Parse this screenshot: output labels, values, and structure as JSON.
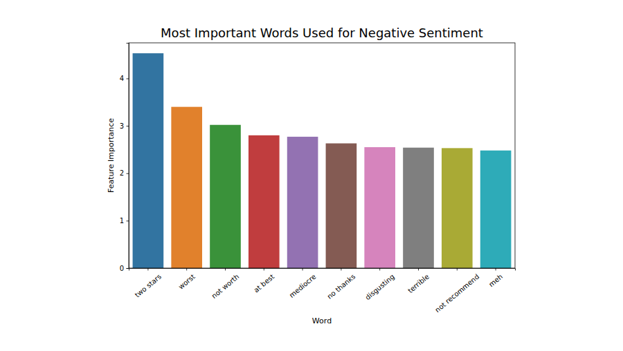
{
  "chart_data": {
    "type": "bar",
    "title": "Most Important Words Used for Negative Sentiment",
    "x_label": "Word",
    "y_label": "Feature Importance",
    "categories": [
      "two stars",
      "worst",
      "not worth",
      "at best",
      "mediocre",
      "no thanks",
      "disgusting",
      "terrible",
      "not recommend",
      "meh"
    ],
    "values": [
      4.53,
      3.4,
      3.02,
      2.8,
      2.77,
      2.63,
      2.55,
      2.54,
      2.53,
      2.48
    ],
    "colors": [
      "#3274a1",
      "#e1812c",
      "#3a923a",
      "#c03d3e",
      "#9372b2",
      "#845b53",
      "#d684bd",
      "#7f7f7f",
      "#a9aa35",
      "#2eabb8"
    ],
    "ylim": [
      0,
      4.75
    ],
    "yticks": [
      0,
      1,
      2,
      3,
      4
    ],
    "grid": false
  }
}
